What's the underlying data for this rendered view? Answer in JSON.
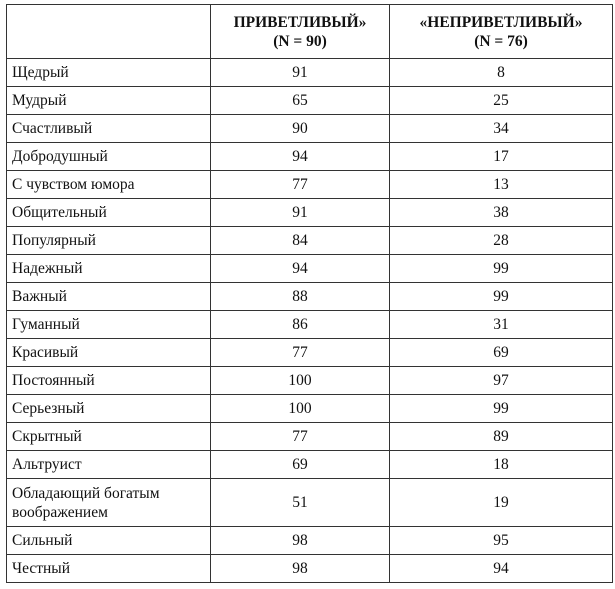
{
  "table": {
    "columns": [
      {
        "title": "ПРИВЕТЛИВЫЙ»",
        "subtitle": "(N = 90)"
      },
      {
        "title": "«НЕПРИВЕТЛИВЫЙ»",
        "subtitle": "(N = 76)"
      }
    ],
    "rows": [
      [
        "Щедрый",
        91,
        8
      ],
      [
        "Мудрый",
        65,
        25
      ],
      [
        "Счастливый",
        90,
        34
      ],
      [
        "Добродушный",
        94,
        17
      ],
      [
        "С чувством юмора",
        77,
        13
      ],
      [
        "Общительный",
        91,
        38
      ],
      [
        "Популярный",
        84,
        28
      ],
      [
        "Надежный",
        94,
        99
      ],
      [
        "Важный",
        88,
        99
      ],
      [
        "Гуманный",
        86,
        31
      ],
      [
        "Красивый",
        77,
        69
      ],
      [
        "Постоянный",
        100,
        97
      ],
      [
        "Серьезный",
        100,
        99
      ],
      [
        "Скрытный",
        77,
        89
      ],
      [
        "Альтруист",
        69,
        18
      ],
      [
        "Обладающий богатым воображением",
        51,
        19
      ],
      [
        "Сильный",
        98,
        95
      ],
      [
        "Честный",
        98,
        94
      ]
    ]
  }
}
